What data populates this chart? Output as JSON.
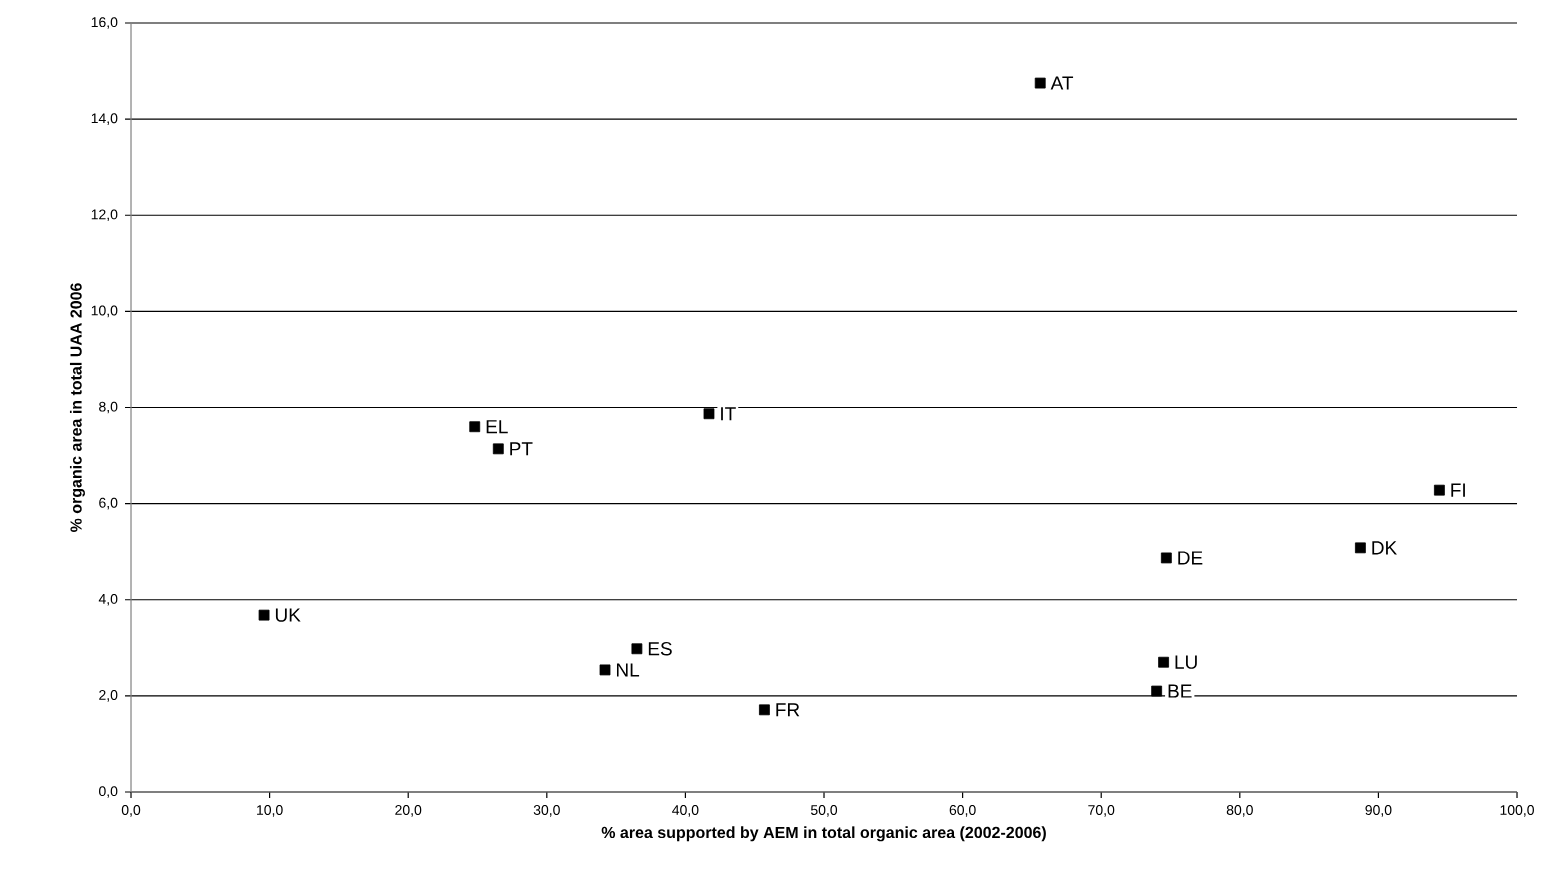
{
  "chart_data": {
    "type": "scatter",
    "xlabel": "% area supported by AEM in total organic area (2002-2006)",
    "ylabel": "% organic area in total UAA 2006",
    "series": [
      {
        "color": "#000000",
        "x": [
          65.6,
          24.8,
          26.5,
          41.7,
          94.4,
          88.7,
          74.7,
          9.6,
          36.5,
          34.2,
          74.5,
          74.0,
          45.7
        ],
        "values": [
          14.75,
          7.6,
          7.14,
          7.87,
          6.28,
          5.08,
          4.87,
          3.68,
          2.98,
          2.54,
          2.7,
          2.1,
          1.71
        ]
      }
    ],
    "annotations": [
      {
        "text": "AT",
        "x": 65.6,
        "y": 14.75
      },
      {
        "text": "EL",
        "x": 24.8,
        "y": 7.6
      },
      {
        "text": "PT",
        "x": 26.5,
        "y": 7.14
      },
      {
        "text": "IT",
        "x": 41.7,
        "y": 7.87
      },
      {
        "text": "FI",
        "x": 94.4,
        "y": 6.28
      },
      {
        "text": "DK",
        "x": 88.7,
        "y": 5.08
      },
      {
        "text": "DE",
        "x": 74.7,
        "y": 4.87
      },
      {
        "text": "UK",
        "x": 9.6,
        "y": 3.68
      },
      {
        "text": "ES",
        "x": 36.5,
        "y": 2.98
      },
      {
        "text": "NL",
        "x": 34.2,
        "y": 2.54
      },
      {
        "text": "LU",
        "x": 74.5,
        "y": 2.7
      },
      {
        "text": "BE",
        "x": 74.0,
        "y": 2.1
      },
      {
        "text": "FR",
        "x": 45.7,
        "y": 1.71
      }
    ],
    "xlim": [
      0,
      100
    ],
    "xticks": [
      {
        "value": 0,
        "label": "0,0"
      },
      {
        "value": 10,
        "label": "10,0"
      },
      {
        "value": 20,
        "label": "20,0"
      },
      {
        "value": 30,
        "label": "30,0"
      },
      {
        "value": 40,
        "label": "40,0"
      },
      {
        "value": 50,
        "label": "50,0"
      },
      {
        "value": 60,
        "label": "60,0"
      },
      {
        "value": 70,
        "label": "70,0"
      },
      {
        "value": 80,
        "label": "80,0"
      },
      {
        "value": 90,
        "label": "90,0"
      },
      {
        "value": 100,
        "label": "100,0"
      }
    ],
    "ylim": [
      0,
      16
    ],
    "yticks": [
      {
        "value": 0,
        "label": "0,0"
      },
      {
        "value": 2,
        "label": "2,0"
      },
      {
        "value": 4,
        "label": "4,0"
      },
      {
        "value": 6,
        "label": "6,0"
      },
      {
        "value": 8,
        "label": "8,0"
      },
      {
        "value": 10,
        "label": "10,0"
      },
      {
        "value": 12,
        "label": "12,0"
      },
      {
        "value": 14,
        "label": "14,0"
      },
      {
        "value": 16,
        "label": "16,0"
      }
    ],
    "grid": "y",
    "marker": "square"
  }
}
